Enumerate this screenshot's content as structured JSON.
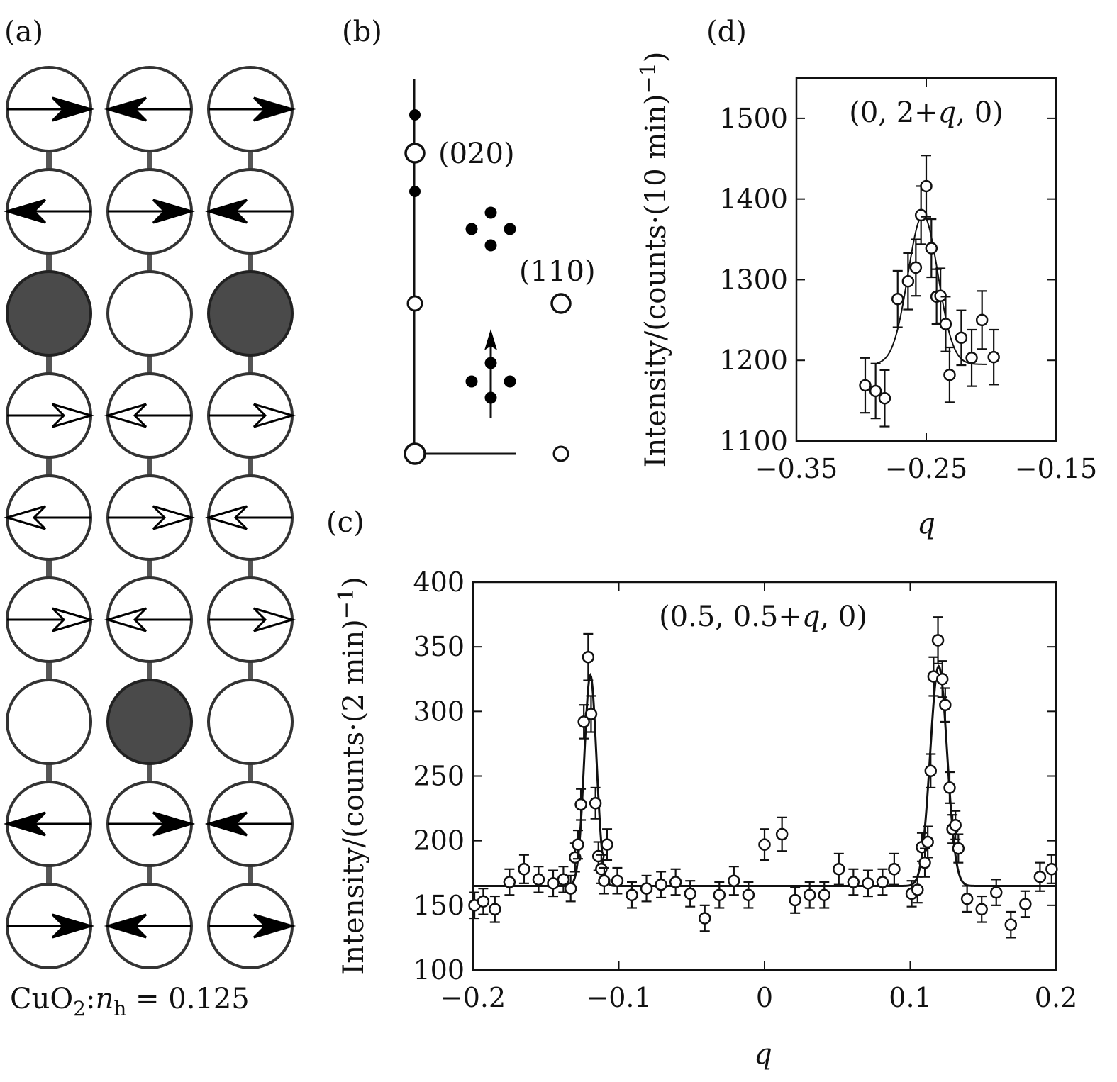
{
  "panel_labels": {
    "a": "(a)",
    "b": "(b)",
    "c": "(c)",
    "d": "(d)"
  },
  "panel_a": {
    "caption": "CuO₂:n_h = 0.125",
    "rows": [
      [
        "black-right",
        "black-left",
        "black-right"
      ],
      [
        "black-left",
        "black-right",
        "black-left"
      ],
      [
        "hole",
        "empty",
        "hole"
      ],
      [
        "open-right",
        "open-left",
        "open-right"
      ],
      [
        "open-left",
        "open-right",
        "open-left"
      ],
      [
        "open-right",
        "open-left",
        "open-right"
      ],
      [
        "empty",
        "hole",
        "empty"
      ],
      [
        "black-left",
        "black-right",
        "black-left"
      ],
      [
        "black-right",
        "black-left",
        "black-right"
      ]
    ],
    "colors": {
      "hole": "#4a4a4a",
      "arrow": "#000000"
    }
  },
  "panel_b": {
    "labels": {
      "p020": "(020)",
      "p110": "(110)"
    }
  },
  "chart_data": [
    {
      "panel": "(c)",
      "type": "scatter",
      "annotation": "(0.5, 0.5+q, 0)",
      "xlabel": "q",
      "ylabel": "Intensity/(counts·(2 min)⁻¹)",
      "xlim": [
        -0.2,
        0.2
      ],
      "ylim": [
        100,
        400
      ],
      "xticks": [
        -0.2,
        -0.1,
        0,
        0.1,
        0.2
      ],
      "xticklabels": [
        "−0.2",
        "−0.1",
        "0",
        "0.1",
        "0.2"
      ],
      "yticks": [
        100,
        150,
        200,
        250,
        300,
        350,
        400
      ],
      "yticklabels": [
        "100",
        "150",
        "200",
        "250",
        "300",
        "350",
        "400"
      ],
      "points": [
        [
          -0.199,
          150,
          10
        ],
        [
          -0.193,
          153,
          10
        ],
        [
          -0.185,
          147,
          10
        ],
        [
          -0.175,
          168,
          10
        ],
        [
          -0.165,
          178,
          11
        ],
        [
          -0.155,
          170,
          10
        ],
        [
          -0.145,
          167,
          10
        ],
        [
          -0.138,
          170,
          10
        ],
        [
          -0.133,
          163,
          10
        ],
        [
          -0.13,
          187,
          11
        ],
        [
          -0.128,
          197,
          11
        ],
        [
          -0.126,
          228,
          12
        ],
        [
          -0.124,
          292,
          13
        ],
        [
          -0.121,
          342,
          18
        ],
        [
          -0.119,
          298,
          14
        ],
        [
          -0.116,
          229,
          12
        ],
        [
          -0.114,
          188,
          11
        ],
        [
          -0.112,
          178,
          11
        ],
        [
          -0.11,
          169,
          10
        ],
        [
          -0.108,
          197,
          12
        ],
        [
          -0.101,
          169,
          10
        ],
        [
          -0.091,
          158,
          10
        ],
        [
          -0.081,
          163,
          10
        ],
        [
          -0.071,
          166,
          10
        ],
        [
          -0.061,
          168,
          10
        ],
        [
          -0.051,
          159,
          10
        ],
        [
          -0.041,
          140,
          10
        ],
        [
          -0.031,
          158,
          10
        ],
        [
          -0.021,
          169,
          11
        ],
        [
          -0.011,
          158,
          10
        ],
        [
          0.0,
          197,
          12
        ],
        [
          0.012,
          205,
          13
        ],
        [
          0.021,
          154,
          10
        ],
        [
          0.031,
          158,
          10
        ],
        [
          0.041,
          158,
          10
        ],
        [
          0.051,
          178,
          12
        ],
        [
          0.061,
          168,
          10
        ],
        [
          0.071,
          167,
          10
        ],
        [
          0.081,
          168,
          10
        ],
        [
          0.089,
          178,
          12
        ],
        [
          0.101,
          159,
          10
        ],
        [
          0.105,
          162,
          10
        ],
        [
          0.108,
          195,
          11
        ],
        [
          0.11,
          183,
          11
        ],
        [
          0.112,
          199,
          12
        ],
        [
          0.114,
          254,
          13
        ],
        [
          0.116,
          327,
          15
        ],
        [
          0.119,
          355,
          18
        ],
        [
          0.122,
          325,
          14
        ],
        [
          0.124,
          305,
          13
        ],
        [
          0.127,
          241,
          12
        ],
        [
          0.129,
          209,
          11
        ],
        [
          0.131,
          212,
          11
        ],
        [
          0.133,
          194,
          11
        ],
        [
          0.139,
          155,
          10
        ],
        [
          0.149,
          147,
          10
        ],
        [
          0.159,
          160,
          10
        ],
        [
          0.169,
          135,
          10
        ],
        [
          0.179,
          151,
          10
        ],
        [
          0.189,
          172,
          11
        ],
        [
          0.197,
          178,
          11
        ]
      ],
      "fit_line": {
        "baseline": 165,
        "peaks": [
          {
            "center": -0.1195,
            "amplitude": 163,
            "width": 0.0042
          },
          {
            "center": 0.1195,
            "amplitude": 170,
            "width": 0.0058
          }
        ]
      }
    },
    {
      "panel": "(d)",
      "type": "scatter",
      "annotation": "(0, 2+q, 0)",
      "xlabel": "q",
      "ylabel": "Intensity/(counts·(10 min)⁻¹)",
      "xlim": [
        -0.35,
        -0.15
      ],
      "ylim": [
        1100,
        1550
      ],
      "xticks": [
        -0.35,
        -0.25,
        -0.15
      ],
      "xticklabels": [
        "−0.35",
        "−0.25",
        "−0.15"
      ],
      "yticks": [
        1100,
        1200,
        1300,
        1400,
        1500
      ],
      "yticklabels": [
        "1100",
        "1200",
        "1300",
        "1400",
        "1500"
      ],
      "points": [
        [
          -0.297,
          1169,
          34
        ],
        [
          -0.289,
          1162,
          34
        ],
        [
          -0.282,
          1153,
          35
        ],
        [
          -0.272,
          1276,
          35
        ],
        [
          -0.264,
          1298,
          35
        ],
        [
          -0.258,
          1315,
          35
        ],
        [
          -0.254,
          1380,
          36
        ],
        [
          -0.25,
          1416,
          38
        ],
        [
          -0.246,
          1339,
          36
        ],
        [
          -0.242,
          1279,
          34
        ],
        [
          -0.239,
          1280,
          34
        ],
        [
          -0.235,
          1245,
          34
        ],
        [
          -0.232,
          1182,
          34
        ],
        [
          -0.223,
          1228,
          34
        ],
        [
          -0.215,
          1203,
          35
        ],
        [
          -0.207,
          1250,
          36
        ],
        [
          -0.198,
          1204,
          34
        ]
      ],
      "fit_line": {
        "xrange": [
          -0.288,
          -0.203
        ],
        "baseline": 1195,
        "peaks": [
          {
            "center": -0.2525,
            "amplitude": 185,
            "width": 0.0115
          }
        ]
      }
    }
  ]
}
